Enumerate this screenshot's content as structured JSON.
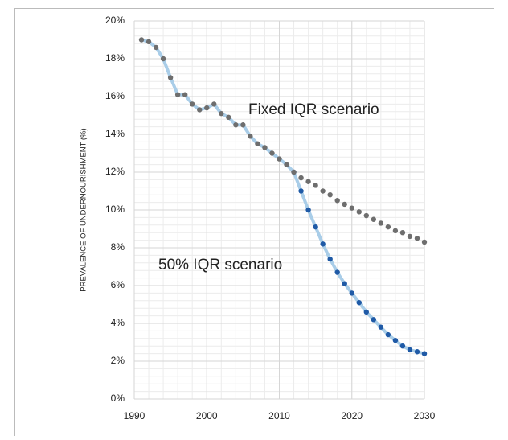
{
  "chart_data": {
    "type": "line",
    "y_label": "PREVALENCE OF UNDERNOURISHMENT (%)",
    "annotations": [
      "Fixed IQR scenario",
      "50% IQR scenario"
    ],
    "xlim": [
      1990,
      2030
    ],
    "xticks": [
      1990,
      2000,
      2010,
      2020,
      2030
    ],
    "ylim": [
      0,
      20
    ],
    "yticks": [
      {
        "value": 0,
        "label": "0%"
      },
      {
        "value": 2,
        "label": "2%"
      },
      {
        "value": 4,
        "label": "4%"
      },
      {
        "value": 6,
        "label": "6%"
      },
      {
        "value": 8,
        "label": "8%"
      },
      {
        "value": 10,
        "label": "10%"
      },
      {
        "value": 12,
        "label": "12%"
      },
      {
        "value": 14,
        "label": "14%"
      },
      {
        "value": 16,
        "label": "16%"
      },
      {
        "value": 18,
        "label": "18%"
      },
      {
        "value": 20,
        "label": "20%"
      }
    ],
    "grid": true,
    "series": [
      {
        "color": "#6e6e6e",
        "line_color": "#a9cde8",
        "x": [
          1991,
          1992,
          1993,
          1994,
          1995,
          1996,
          1997,
          1998,
          1999,
          2000,
          2001,
          2002,
          2003,
          2004,
          2005,
          2006,
          2007,
          2008,
          2009,
          2010,
          2011,
          2012
        ],
        "values": [
          19.0,
          18.9,
          18.6,
          18.0,
          17.0,
          16.1,
          16.1,
          15.6,
          15.3,
          15.4,
          15.6,
          15.1,
          14.9,
          14.5,
          14.5,
          13.9,
          13.5,
          13.3,
          13.0,
          12.7,
          12.4,
          12.0
        ]
      },
      {
        "color": "#6e6e6e",
        "x": [
          2013,
          2014,
          2015,
          2016,
          2017,
          2018,
          2019,
          2020,
          2021,
          2022,
          2023,
          2024,
          2025,
          2026,
          2027,
          2028,
          2029,
          2030
        ],
        "values": [
          11.7,
          11.5,
          11.3,
          11.0,
          10.8,
          10.5,
          10.3,
          10.1,
          9.9,
          9.7,
          9.5,
          9.3,
          9.1,
          8.9,
          8.8,
          8.6,
          8.5,
          8.3
        ]
      },
      {
        "color": "#1f5aa6",
        "line_color": "#a9cde8",
        "x": [
          2012,
          2013,
          2014,
          2015,
          2016,
          2017,
          2018,
          2019,
          2020,
          2021,
          2022,
          2023,
          2024,
          2025,
          2026,
          2027,
          2028,
          2029,
          2030
        ],
        "values": [
          12.0,
          11.0,
          10.0,
          9.1,
          8.2,
          7.4,
          6.7,
          6.1,
          5.6,
          5.1,
          4.6,
          4.2,
          3.8,
          3.4,
          3.1,
          2.8,
          2.6,
          2.5,
          2.4
        ]
      }
    ]
  }
}
